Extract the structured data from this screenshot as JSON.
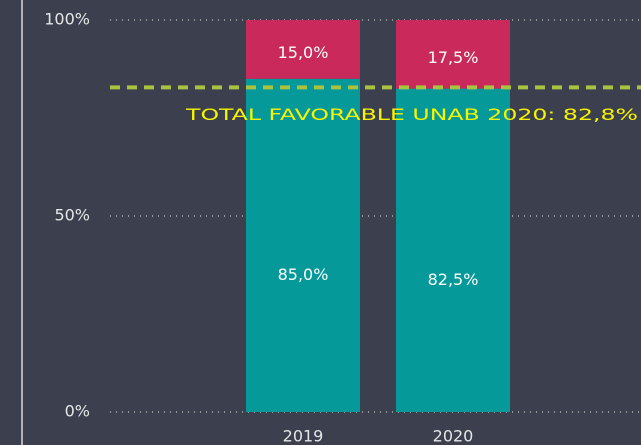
{
  "chart_data": {
    "type": "bar",
    "stacked": true,
    "categories": [
      "2019",
      "2020"
    ],
    "series": [
      {
        "color": "#05999a",
        "values": [
          85,
          82.5
        ],
        "value_labels": [
          "85,0%",
          "82,5%"
        ]
      },
      {
        "color": "#c92a5b",
        "values": [
          15,
          17.5
        ],
        "value_labels": [
          "15,0%",
          "17,5%"
        ]
      }
    ],
    "ylim": [
      0,
      100
    ],
    "yticks": [
      {
        "value": 0,
        "label": "0%"
      },
      {
        "value": 50,
        "label": "50%"
      },
      {
        "value": 100,
        "label": "100%"
      }
    ],
    "grid": true,
    "reference_line": {
      "value": 82.8,
      "label": "TOTAL FAVORABLE UNAB 2020: 82,8%",
      "color": "#a9c23f",
      "label_color": "#f5f500"
    }
  }
}
